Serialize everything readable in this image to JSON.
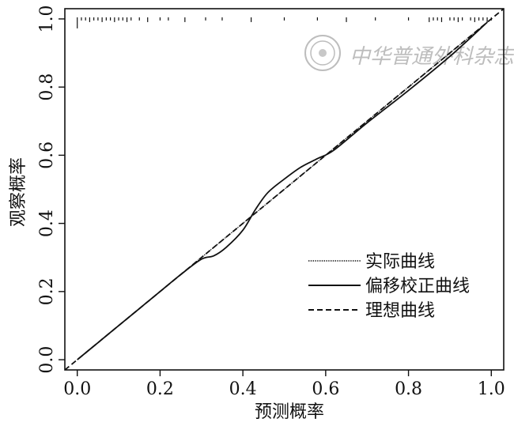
{
  "chart_data": {
    "type": "line",
    "title": "",
    "xlabel": "预测概率",
    "ylabel": "观察概率",
    "xlim": [
      -0.03,
      1.03
    ],
    "ylim": [
      -0.03,
      1.03
    ],
    "xticks": [
      0.0,
      0.2,
      0.4,
      0.6,
      0.8,
      1.0
    ],
    "xtick_labels": [
      "0.0",
      "0.2",
      "0.4",
      "0.6",
      "0.8",
      "1.0"
    ],
    "yticks": [
      0.0,
      0.2,
      0.4,
      0.6,
      0.8,
      1.0
    ],
    "ytick_labels": [
      "0.0",
      "0.2",
      "0.4",
      "0.6",
      "0.8",
      "1.0"
    ],
    "grid": false,
    "legend_position": "bottom-right",
    "series": [
      {
        "name": "实际曲线",
        "style": "dotted",
        "x": [
          0.0,
          1.0
        ],
        "y": [
          0.0,
          1.0
        ]
      },
      {
        "name": "偏移校正曲线",
        "style": "solid",
        "x": [
          0.0,
          0.05,
          0.1,
          0.15,
          0.2,
          0.25,
          0.3,
          0.33,
          0.36,
          0.4,
          0.43,
          0.46,
          0.5,
          0.54,
          0.58,
          0.62,
          0.7,
          0.8,
          0.9,
          0.99
        ],
        "y": [
          0.0,
          0.05,
          0.1,
          0.15,
          0.2,
          0.25,
          0.295,
          0.305,
          0.33,
          0.38,
          0.44,
          0.49,
          0.53,
          0.565,
          0.59,
          0.615,
          0.695,
          0.79,
          0.89,
          0.99
        ]
      },
      {
        "name": "理想曲线",
        "style": "dashed",
        "x": [
          -0.03,
          1.03
        ],
        "y": [
          -0.03,
          1.03
        ]
      }
    ],
    "rug_top_x": [
      0.0,
      0.01,
      0.02,
      0.03,
      0.04,
      0.05,
      0.06,
      0.07,
      0.08,
      0.09,
      0.1,
      0.11,
      0.12,
      0.13,
      0.15,
      0.17,
      0.2,
      0.22,
      0.26,
      0.31,
      0.35,
      0.42,
      0.5,
      0.58,
      0.65,
      0.72,
      0.8,
      0.85,
      0.86,
      0.87,
      0.88,
      0.9,
      0.91,
      0.92,
      0.93,
      0.95,
      0.96,
      0.97,
      0.98,
      0.99,
      1.0
    ]
  },
  "watermark": {
    "text": "中华普通外科杂志"
  }
}
